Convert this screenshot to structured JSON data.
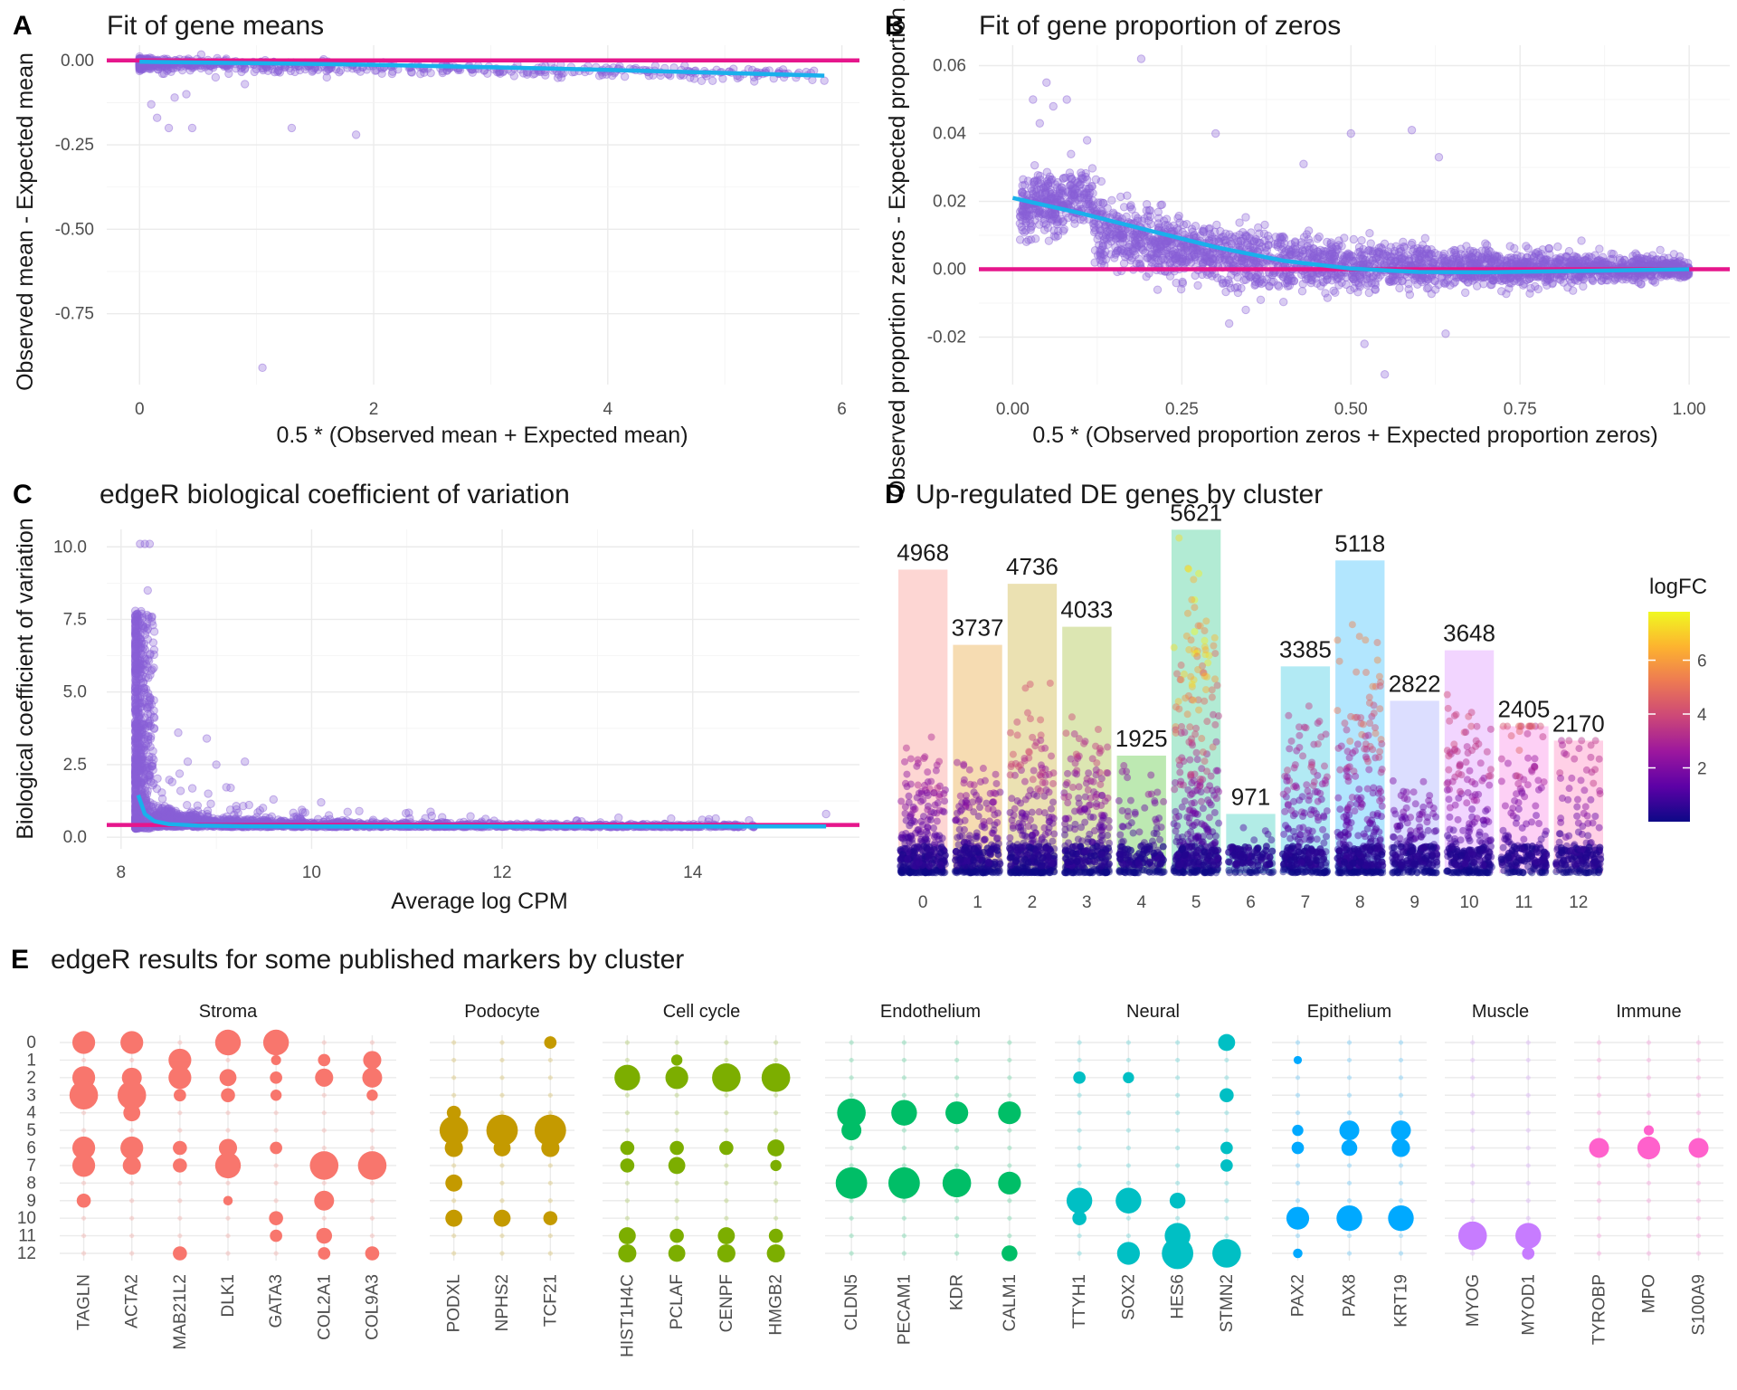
{
  "chart_data": [
    {
      "id": "A",
      "panel_letter": "A",
      "type": "scatter",
      "title": "Fit of gene means",
      "xlabel": "0.5 * (Observed mean + Expected mean)",
      "ylabel": "Observed mean - Expected mean",
      "xlim": [
        -0.28,
        6.15
      ],
      "ylim": [
        -0.96,
        0.045
      ],
      "xticks": [
        0,
        2,
        4,
        6
      ],
      "xtick_labels": [
        "0",
        "2",
        "4",
        "6"
      ],
      "yticks": [
        0,
        -0.25,
        -0.5,
        -0.75
      ],
      "ytick_labels": [
        "0.00",
        "-0.25",
        "-0.50",
        "-0.75"
      ],
      "point_color": "#8a5fd6",
      "hline": 0,
      "hline_color": "#e6168c",
      "trend_color": "#19b0ec",
      "trend": {
        "x": [
          0,
          1,
          2,
          3,
          4,
          5,
          5.85
        ],
        "y": [
          -0.004,
          -0.008,
          -0.013,
          -0.02,
          -0.028,
          -0.037,
          -0.045
        ]
      },
      "outliers": {
        "x": [
          0.1,
          0.25,
          0.45,
          0.3,
          0.15,
          1.05,
          1.3,
          1.85,
          0.65,
          0.4,
          0.9,
          1.6,
          5.85,
          2.4,
          3.6
        ],
        "y": [
          -0.13,
          -0.2,
          -0.2,
          -0.11,
          -0.17,
          -0.91,
          -0.2,
          -0.22,
          -0.05,
          -0.1,
          -0.07,
          -0.05,
          -0.06,
          -0.04,
          -0.03
        ]
      },
      "grid": true
    },
    {
      "id": "B",
      "panel_letter": "B",
      "type": "scatter",
      "title": "Fit of gene proportion of zeros",
      "xlabel": "0.5 * (Observed proportion zeros + Expected proportion zeros)",
      "ylabel": "Observed proportion zeros - Expected proportion zeros",
      "xlim": [
        -0.05,
        1.06
      ],
      "ylim": [
        -0.034,
        0.066
      ],
      "xticks": [
        0,
        0.25,
        0.5,
        0.75,
        1.0
      ],
      "xtick_labels": [
        "0.00",
        "0.25",
        "0.50",
        "0.75",
        "1.00"
      ],
      "yticks": [
        0.06,
        0.04,
        0.02,
        0.0,
        -0.02
      ],
      "ytick_labels": [
        "0.06",
        "0.04",
        "0.02",
        "0.00",
        "-0.02"
      ],
      "point_color": "#8a5fd6",
      "hline": 0,
      "hline_color": "#e6168c",
      "trend_color": "#19b0ec",
      "trend": {
        "x": [
          0.0,
          0.1,
          0.2,
          0.3,
          0.4,
          0.5,
          0.6,
          0.7,
          0.8,
          0.9,
          1.0
        ],
        "y": [
          0.021,
          0.0165,
          0.0115,
          0.0065,
          0.0025,
          0.0002,
          -0.0008,
          -0.0009,
          -0.0006,
          -0.0003,
          0.0
        ]
      },
      "outliers": {
        "x": [
          0.19,
          0.05,
          0.03,
          0.06,
          0.08,
          0.04,
          0.11,
          0.3,
          0.5,
          0.59,
          0.63,
          0.55,
          0.43,
          0.32,
          0.52,
          0.64
        ],
        "y": [
          0.062,
          0.055,
          0.05,
          0.048,
          0.05,
          0.043,
          0.038,
          0.04,
          0.04,
          0.041,
          0.033,
          -0.031,
          0.031,
          -0.016,
          -0.022,
          -0.019
        ]
      },
      "grid": true
    },
    {
      "id": "C",
      "panel_letter": "C",
      "type": "scatter",
      "title": "edgeR biological coefficient of variation",
      "xlabel": "Average log CPM",
      "ylabel": "Biological coefficient of variation",
      "xlim": [
        7.85,
        15.75
      ],
      "ylim": [
        -0.4,
        10.6
      ],
      "xticks": [
        8,
        10,
        12,
        14
      ],
      "xtick_labels": [
        "8",
        "10",
        "12",
        "14"
      ],
      "yticks": [
        0,
        2.5,
        5,
        7.5,
        10
      ],
      "ytick_labels": [
        "0.0",
        "2.5",
        "5.0",
        "7.5",
        "10.0"
      ],
      "point_color": "#8a5fd6",
      "hline": 0.42,
      "hline_color": "#e6168c",
      "trend_color": "#19b0ec",
      "trend": {
        "x": [
          8.18,
          8.25,
          8.35,
          8.5,
          8.8,
          9.3,
          10,
          11,
          12,
          13,
          14,
          15.4
        ],
        "y": [
          1.45,
          0.8,
          0.55,
          0.45,
          0.4,
          0.38,
          0.37,
          0.37,
          0.37,
          0.37,
          0.37,
          0.37
        ]
      },
      "outliers": {
        "x": [
          8.2,
          8.25,
          8.3,
          8.28,
          8.6,
          9.0,
          9.3,
          9.15,
          8.9,
          10.1,
          10.5,
          14.1,
          15.4,
          8.7,
          9.6
        ],
        "y": [
          10.1,
          10.1,
          10.1,
          8.5,
          3.6,
          2.5,
          2.6,
          1.7,
          3.4,
          1.2,
          0.9,
          0.6,
          0.8,
          2.6,
          1.3
        ]
      },
      "grid": true
    },
    {
      "id": "D",
      "panel_letter": "D",
      "type": "bar",
      "title": "Up-regulated DE genes by cluster",
      "xlabel": "",
      "ylabel": "",
      "categories": [
        "0",
        "1",
        "2",
        "3",
        "4",
        "5",
        "6",
        "7",
        "8",
        "9",
        "10",
        "11",
        "12"
      ],
      "values": [
        4968,
        3737,
        4736,
        4033,
        1925,
        5621,
        971,
        3385,
        5118,
        2822,
        3648,
        2405,
        2170
      ],
      "value_labels": [
        "4968",
        "3737",
        "4736",
        "4033",
        "1925",
        "5621",
        "971",
        "3385",
        "5118",
        "2822",
        "3648",
        "2405",
        "2170"
      ],
      "ylim": [
        0,
        5700
      ],
      "bar_colors": [
        "#f8766d",
        "#e18a00",
        "#be9c00",
        "#8cab00",
        "#24b700",
        "#00be70",
        "#00c1ab",
        "#00bbda",
        "#00acfc",
        "#8b93ff",
        "#d575fe",
        "#f962dd",
        "#ff65ac"
      ],
      "bar_alpha": 0.3,
      "legend": {
        "title": "logFC",
        "ticks": [
          2,
          4,
          6
        ],
        "tick_labels": [
          "2",
          "4",
          "6"
        ],
        "min": 0,
        "max": 7.8,
        "position": "right",
        "colors": [
          "#0d0887",
          "#5c01a6",
          "#9c179e",
          "#cc4778",
          "#ed7953",
          "#fdb32f",
          "#f0f921"
        ]
      },
      "max_logfc_by_cluster": [
        3.2,
        2.8,
        4.2,
        3.9,
        2.5,
        7.8,
        1.2,
        3.8,
        5.6,
        2.1,
        4.4,
        5.2,
        3.6
      ]
    },
    {
      "id": "E",
      "panel_letter": "E",
      "type": "scatter",
      "title": "edgeR results for some published markers by cluster",
      "xlabel": "",
      "ylabel": "",
      "clusters": [
        "0",
        "1",
        "2",
        "3",
        "4",
        "5",
        "6",
        "7",
        "8",
        "9",
        "10",
        "11",
        "12"
      ],
      "facets": [
        {
          "name": "Stroma",
          "color": "#f8766d",
          "genes": [
            "TAGLN",
            "ACTA2",
            "MAB21L2",
            "DLK1",
            "GATA3",
            "COL2A1",
            "COL9A3"
          ],
          "points": [
            [
              0,
              0,
              3
            ],
            [
              0,
              2,
              3
            ],
            [
              0,
              3,
              4
            ],
            [
              0,
              6,
              3
            ],
            [
              0,
              7,
              3
            ],
            [
              0,
              9,
              1.5
            ],
            [
              1,
              0,
              3
            ],
            [
              1,
              2,
              2.5
            ],
            [
              1,
              3,
              4
            ],
            [
              1,
              4,
              2
            ],
            [
              1,
              6,
              3
            ],
            [
              1,
              7,
              2.2
            ],
            [
              2,
              1,
              3
            ],
            [
              2,
              2,
              3
            ],
            [
              2,
              3,
              1.2
            ],
            [
              2,
              6,
              1.5
            ],
            [
              2,
              7,
              1.5
            ],
            [
              2,
              12,
              1.5
            ],
            [
              3,
              0,
              3.5
            ],
            [
              3,
              2,
              2
            ],
            [
              3,
              3,
              1.5
            ],
            [
              3,
              6,
              2.2
            ],
            [
              3,
              7,
              3.5
            ],
            [
              3,
              9,
              0.7
            ],
            [
              4,
              0,
              3.5
            ],
            [
              4,
              1,
              0.8
            ],
            [
              4,
              2,
              1.2
            ],
            [
              4,
              3,
              1
            ],
            [
              4,
              6,
              1.2
            ],
            [
              4,
              10,
              1.5
            ],
            [
              4,
              11,
              1.2
            ],
            [
              5,
              1,
              1.2
            ],
            [
              5,
              2,
              2.2
            ],
            [
              5,
              7,
              4
            ],
            [
              5,
              9,
              2.5
            ],
            [
              5,
              11,
              1.8
            ],
            [
              5,
              12,
              1.2
            ],
            [
              6,
              1,
              2.2
            ],
            [
              6,
              2,
              2.5
            ],
            [
              6,
              3,
              1
            ],
            [
              6,
              7,
              4
            ],
            [
              6,
              12,
              1.5
            ]
          ]
        },
        {
          "name": "Podocyte",
          "color": "#c49a00",
          "genes": [
            "PODXL",
            "NPHS2",
            "TCF21"
          ],
          "points": [
            [
              0,
              4,
              1.5
            ],
            [
              0,
              5,
              4
            ],
            [
              0,
              6,
              2.2
            ],
            [
              0,
              8,
              2
            ],
            [
              0,
              10,
              2
            ],
            [
              1,
              5,
              4.5
            ],
            [
              1,
              6,
              2
            ],
            [
              1,
              10,
              2
            ],
            [
              2,
              0,
              1.2
            ],
            [
              2,
              5,
              4.5
            ],
            [
              2,
              6,
              2.2
            ],
            [
              2,
              10,
              1.5
            ]
          ]
        },
        {
          "name": "Cell cycle",
          "color": "#7cae00",
          "genes": [
            "HIST1H4C",
            "PCLAF",
            "CENPF",
            "HMGB2"
          ],
          "points": [
            [
              0,
              2,
              3.5
            ],
            [
              0,
              6,
              1.5
            ],
            [
              0,
              7,
              1.5
            ],
            [
              0,
              11,
              2
            ],
            [
              0,
              12,
              2.2
            ],
            [
              1,
              1,
              1
            ],
            [
              1,
              2,
              3
            ],
            [
              1,
              6,
              1.5
            ],
            [
              1,
              7,
              2
            ],
            [
              1,
              11,
              1.5
            ],
            [
              1,
              12,
              2
            ],
            [
              2,
              2,
              4
            ],
            [
              2,
              6,
              1.5
            ],
            [
              2,
              11,
              2
            ],
            [
              2,
              12,
              2.2
            ],
            [
              3,
              2,
              4
            ],
            [
              3,
              6,
              2
            ],
            [
              3,
              7,
              1
            ],
            [
              3,
              11,
              1.5
            ],
            [
              3,
              12,
              2.2
            ]
          ]
        },
        {
          "name": "Endothelium",
          "color": "#00be67",
          "genes": [
            "CLDN5",
            "PECAM1",
            "KDR",
            "CALM1"
          ],
          "points": [
            [
              0,
              4,
              4
            ],
            [
              0,
              5,
              2.5
            ],
            [
              0,
              8,
              4.5
            ],
            [
              1,
              4,
              3.5
            ],
            [
              1,
              8,
              4.5
            ],
            [
              2,
              4,
              3
            ],
            [
              2,
              8,
              4
            ],
            [
              3,
              4,
              3
            ],
            [
              3,
              8,
              3
            ],
            [
              3,
              12,
              1.8
            ]
          ]
        },
        {
          "name": "Neural",
          "color": "#00bfc4",
          "genes": [
            "TTYH1",
            "SOX2",
            "HES6",
            "STMN2"
          ],
          "points": [
            [
              0,
              2,
              1.2
            ],
            [
              0,
              9,
              3.5
            ],
            [
              0,
              10,
              1.5
            ],
            [
              1,
              2,
              1
            ],
            [
              1,
              9,
              3.5
            ],
            [
              1,
              12,
              3
            ],
            [
              2,
              9,
              1.8
            ],
            [
              2,
              11,
              3.5
            ],
            [
              2,
              12,
              4.5
            ],
            [
              3,
              0,
              2
            ],
            [
              3,
              3,
              1.5
            ],
            [
              3,
              6,
              1.2
            ],
            [
              3,
              7,
              1.2
            ],
            [
              3,
              12,
              4
            ]
          ]
        },
        {
          "name": "Epithelium",
          "color": "#00a9ff",
          "genes": [
            "PAX2",
            "PAX8",
            "KRT19"
          ],
          "points": [
            [
              0,
              1,
              0.5
            ],
            [
              0,
              5,
              1
            ],
            [
              0,
              6,
              1.2
            ],
            [
              0,
              10,
              3
            ],
            [
              0,
              12,
              0.7
            ],
            [
              1,
              5,
              2.5
            ],
            [
              1,
              6,
              1.8
            ],
            [
              1,
              10,
              3.5
            ],
            [
              2,
              5,
              2.5
            ],
            [
              2,
              6,
              2.2
            ],
            [
              2,
              10,
              3.5
            ]
          ]
        },
        {
          "name": "Muscle",
          "color": "#c77cff",
          "genes": [
            "MYOG",
            "MYOD1"
          ],
          "points": [
            [
              0,
              11,
              4
            ],
            [
              1,
              11,
              3.5
            ],
            [
              1,
              12,
              1.2
            ]
          ]
        },
        {
          "name": "Immune",
          "color": "#ff61cc",
          "genes": [
            "TYROBP",
            "MPO",
            "S100A9"
          ],
          "points": [
            [
              0,
              6,
              2.5
            ],
            [
              1,
              5,
              0.8
            ],
            [
              1,
              6,
              3
            ],
            [
              2,
              6,
              2.5
            ]
          ]
        }
      ]
    }
  ]
}
